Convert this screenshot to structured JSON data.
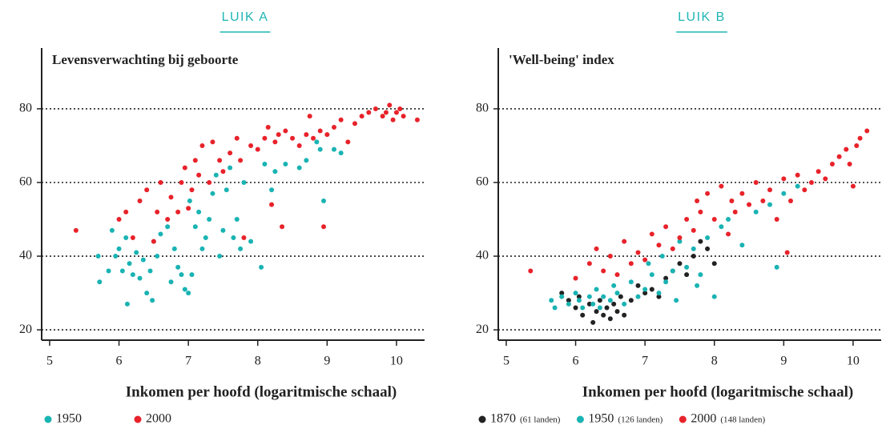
{
  "chart_data": [
    {
      "type": "scatter",
      "panel_label": "LUIK A",
      "title": "Levensverwachting bij geboorte",
      "xlabel": "Inkomen per hoofd (logaritmische schaal)",
      "xlim": [
        4.885,
        10.405
      ],
      "ylim": [
        17.2,
        96.5
      ],
      "xticks": [
        5,
        6,
        7,
        8,
        9,
        10
      ],
      "yticks": [
        20,
        40,
        60,
        80
      ],
      "grid": true,
      "series": [
        {
          "name": "1950",
          "color": "#1ab3b3",
          "x": [
            5.7,
            5.72,
            5.85,
            5.9,
            5.95,
            6.0,
            6.05,
            6.1,
            6.12,
            6.15,
            6.2,
            6.25,
            6.3,
            6.35,
            6.4,
            6.45,
            6.48,
            6.5,
            6.55,
            6.6,
            6.7,
            6.75,
            6.8,
            6.85,
            6.9,
            6.95,
            7.0,
            7.02,
            7.05,
            7.1,
            7.15,
            7.2,
            7.25,
            7.3,
            7.35,
            7.4,
            7.45,
            7.5,
            7.55,
            7.6,
            7.65,
            7.7,
            7.75,
            7.8,
            7.9,
            8.05,
            8.1,
            8.2,
            8.25,
            8.4,
            8.6,
            8.7,
            8.85,
            8.9,
            8.95,
            9.1,
            9.2
          ],
          "values": [
            40,
            33,
            36,
            47,
            40,
            42,
            36,
            45,
            27,
            38,
            35,
            41,
            34,
            39,
            30,
            36,
            28,
            44,
            40,
            46,
            48,
            33,
            42,
            37,
            35,
            31,
            30,
            55,
            35,
            48,
            52,
            42,
            45,
            50,
            57,
            62,
            40,
            47,
            58,
            64,
            45,
            50,
            42,
            60,
            44,
            37,
            65,
            58,
            63,
            65,
            64,
            66,
            71,
            69,
            55,
            69,
            68
          ]
        },
        {
          "name": "2000",
          "color": "#e8222a",
          "x": [
            5.38,
            6.0,
            6.1,
            6.2,
            6.3,
            6.4,
            6.5,
            6.55,
            6.6,
            6.7,
            6.75,
            6.85,
            6.9,
            6.95,
            7.0,
            7.05,
            7.1,
            7.15,
            7.2,
            7.3,
            7.35,
            7.45,
            7.5,
            7.6,
            7.7,
            7.75,
            7.8,
            7.9,
            8.0,
            8.1,
            8.15,
            8.2,
            8.25,
            8.3,
            8.35,
            8.4,
            8.5,
            8.6,
            8.7,
            8.75,
            8.8,
            8.9,
            8.95,
            9.0,
            9.1,
            9.2,
            9.3,
            9.4,
            9.5,
            9.6,
            9.7,
            9.8,
            9.85,
            9.9,
            9.95,
            10.0,
            10.05,
            10.1,
            10.3
          ],
          "values": [
            47,
            50,
            52,
            45,
            55,
            58,
            44,
            52,
            60,
            50,
            56,
            52,
            60,
            64,
            53,
            58,
            66,
            62,
            70,
            60,
            71,
            66,
            63,
            68,
            72,
            66,
            45,
            70,
            69,
            72,
            75,
            54,
            71,
            73,
            48,
            74,
            72,
            70,
            73,
            78,
            72,
            74,
            48,
            73,
            75,
            77,
            71,
            76,
            78,
            79,
            80,
            78,
            79,
            81,
            77,
            79,
            80,
            78,
            77
          ]
        }
      ]
    },
    {
      "type": "scatter",
      "panel_label": "LUIK B",
      "title": "'Well-being' index",
      "xlabel": "Inkomen per hoofd (logaritmische schaal)",
      "xlim": [
        4.885,
        10.405
      ],
      "ylim": [
        17.2,
        96.5
      ],
      "xticks": [
        5,
        6,
        7,
        8,
        9,
        10
      ],
      "yticks": [
        20,
        40,
        60,
        80
      ],
      "grid": true,
      "series": [
        {
          "name": "1870",
          "note": "(61 landen)",
          "color": "#222222",
          "x": [
            5.8,
            5.9,
            6.0,
            6.05,
            6.1,
            6.2,
            6.25,
            6.3,
            6.35,
            6.4,
            6.45,
            6.5,
            6.55,
            6.6,
            6.65,
            6.7,
            6.8,
            6.9,
            7.0,
            7.1,
            7.2,
            7.3,
            7.4,
            7.5,
            7.6,
            7.7,
            7.8,
            7.9,
            8.0
          ],
          "values": [
            30,
            28,
            26,
            29,
            24,
            27,
            22,
            25,
            28,
            24,
            26,
            23,
            27,
            25,
            29,
            24,
            28,
            32,
            30,
            31,
            29,
            34,
            36,
            38,
            35,
            40,
            44,
            42,
            38
          ]
        },
        {
          "name": "1950",
          "note": "(126 landen)",
          "color": "#1ab3b3",
          "x": [
            5.65,
            5.7,
            5.8,
            5.9,
            6.0,
            6.05,
            6.1,
            6.2,
            6.25,
            6.3,
            6.35,
            6.4,
            6.5,
            6.55,
            6.6,
            6.7,
            6.8,
            6.9,
            7.0,
            7.05,
            7.1,
            7.2,
            7.25,
            7.3,
            7.4,
            7.45,
            7.5,
            7.6,
            7.7,
            7.75,
            7.8,
            7.9,
            8.0,
            8.1,
            8.2,
            8.4,
            8.6,
            8.8,
            8.9,
            9.0,
            9.2
          ],
          "values": [
            28,
            26,
            29,
            27,
            30,
            28,
            26,
            29,
            27,
            31,
            26,
            29,
            28,
            32,
            30,
            27,
            33,
            29,
            31,
            38,
            35,
            30,
            40,
            33,
            36,
            28,
            44,
            37,
            42,
            32,
            35,
            45,
            29,
            48,
            50,
            43,
            52,
            54,
            37,
            57,
            59
          ]
        },
        {
          "name": "2000",
          "note": "(148 landen)",
          "color": "#e8222a",
          "x": [
            5.35,
            6.0,
            6.2,
            6.3,
            6.4,
            6.5,
            6.6,
            6.7,
            6.8,
            6.9,
            7.0,
            7.1,
            7.2,
            7.3,
            7.4,
            7.5,
            7.6,
            7.7,
            7.75,
            7.8,
            7.9,
            8.0,
            8.1,
            8.2,
            8.25,
            8.3,
            8.4,
            8.5,
            8.6,
            8.7,
            8.8,
            8.9,
            9.0,
            9.05,
            9.1,
            9.2,
            9.3,
            9.4,
            9.5,
            9.6,
            9.7,
            9.8,
            9.9,
            9.95,
            10.0,
            10.05,
            10.1,
            10.2
          ],
          "values": [
            36,
            34,
            38,
            42,
            36,
            40,
            35,
            44,
            38,
            41,
            39,
            46,
            43,
            48,
            42,
            45,
            50,
            47,
            55,
            52,
            57,
            50,
            59,
            46,
            55,
            52,
            57,
            54,
            60,
            55,
            58,
            50,
            61,
            41,
            55,
            62,
            58,
            60,
            63,
            61,
            65,
            67,
            69,
            65,
            59,
            70,
            72,
            74
          ]
        }
      ]
    }
  ]
}
